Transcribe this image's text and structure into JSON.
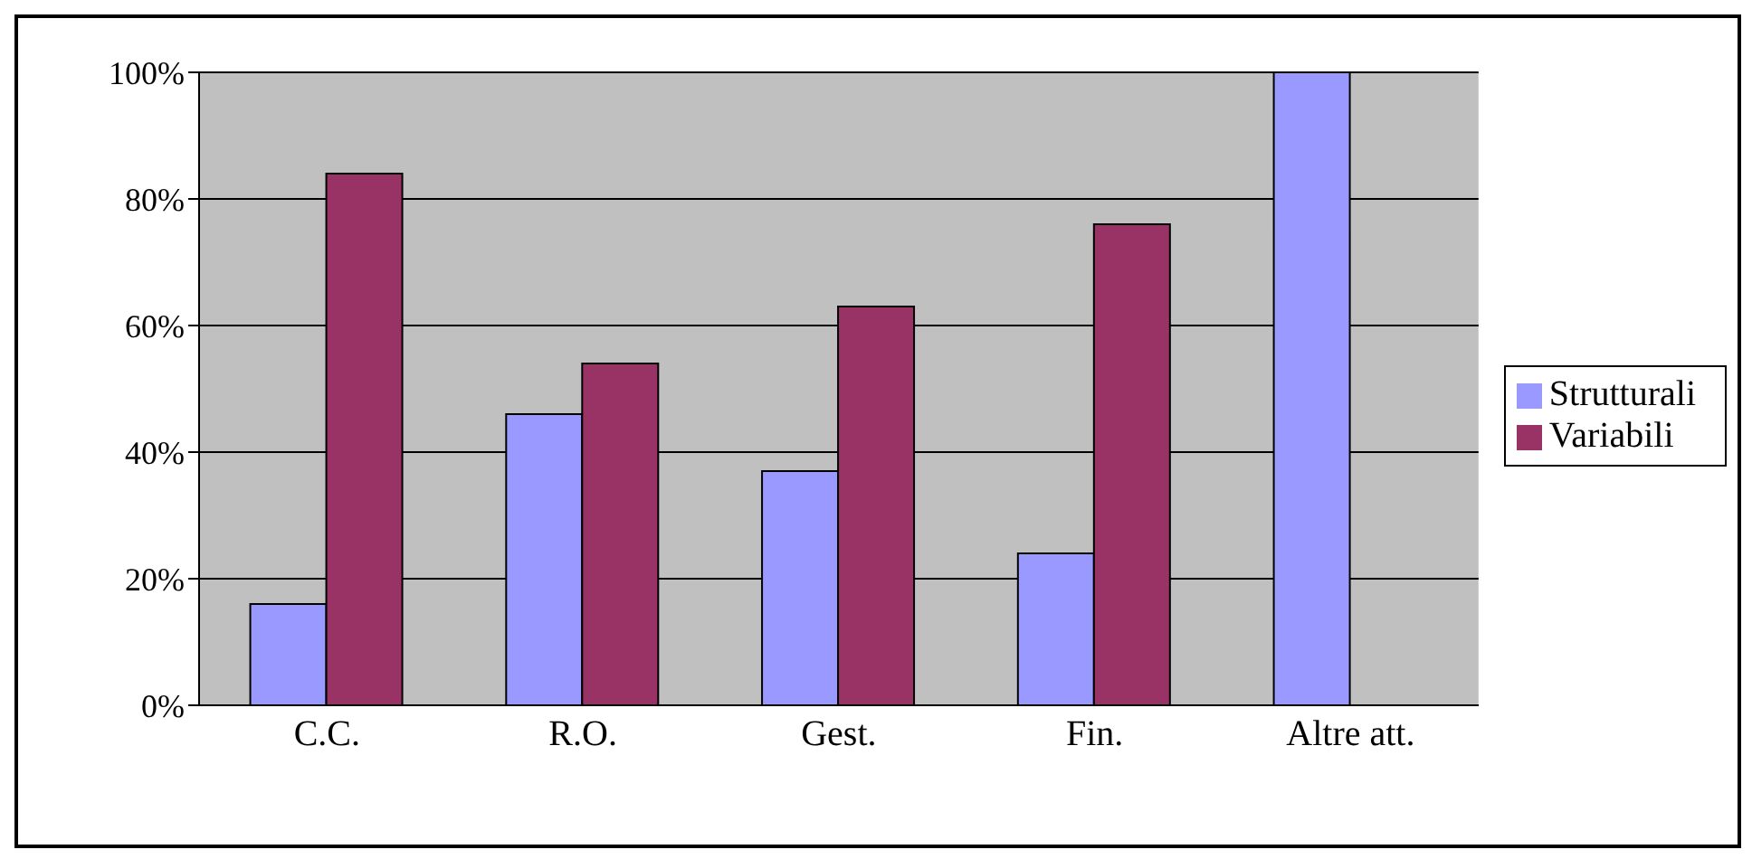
{
  "chart_data": {
    "type": "bar",
    "categories": [
      "C.C.",
      "R.O.",
      "Gest.",
      "Fin.",
      "Altre att."
    ],
    "series": [
      {
        "name": "Strutturali",
        "color": "#9999ff",
        "values": [
          16,
          46,
          37,
          24,
          100
        ]
      },
      {
        "name": "Variabili",
        "color": "#993366",
        "values": [
          84,
          54,
          63,
          76,
          0
        ]
      }
    ],
    "ylim": [
      0,
      100
    ],
    "yticks": [
      {
        "value": 0,
        "label": "0%"
      },
      {
        "value": 20,
        "label": "20%"
      },
      {
        "value": 40,
        "label": "40%"
      },
      {
        "value": 60,
        "label": "60%"
      },
      {
        "value": 80,
        "label": "80%"
      },
      {
        "value": 100,
        "label": "100%"
      }
    ],
    "grid": "y",
    "legend": "right"
  }
}
